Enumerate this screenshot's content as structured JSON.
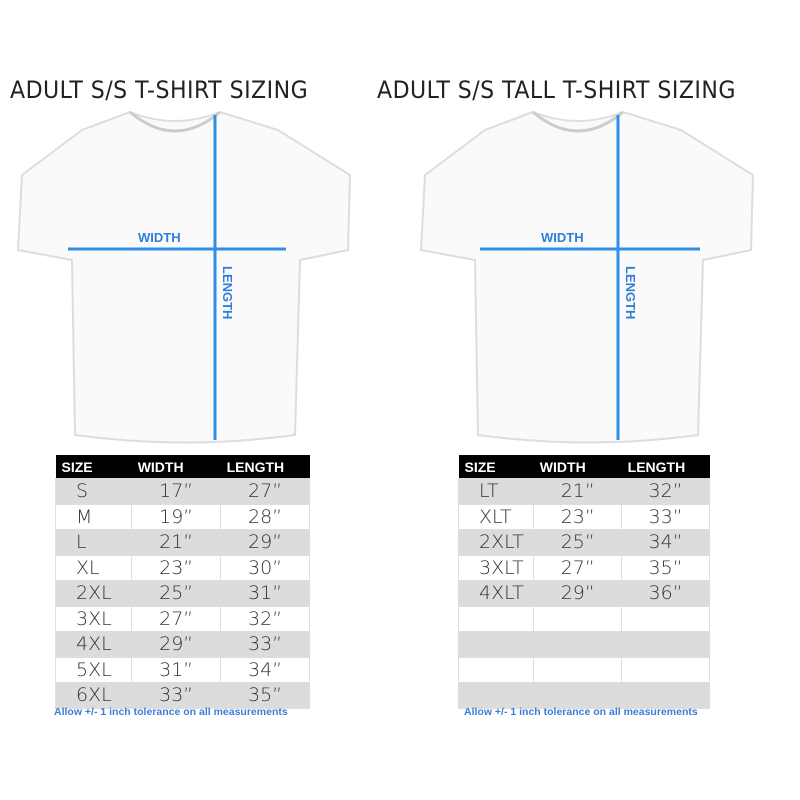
{
  "charts": [
    {
      "title": "ADULT S/S T-SHIRT SIZING",
      "width_label": "WIDTH",
      "length_label": "LENGTH",
      "headers": [
        "SIZE",
        "WIDTH",
        "LENGTH"
      ],
      "rows": [
        [
          "S",
          "17”",
          "27”"
        ],
        [
          "M",
          "19”",
          "28”"
        ],
        [
          "L",
          "21”",
          "29”"
        ],
        [
          "XL",
          "23”",
          "30”"
        ],
        [
          "2XL",
          "25”",
          "31”"
        ],
        [
          "3XL",
          "27”",
          "32”"
        ],
        [
          "4XL",
          "29”",
          "33”"
        ],
        [
          "5XL",
          "31”",
          "34”"
        ],
        [
          "6XL",
          "33”",
          "35”"
        ]
      ],
      "note": "Allow +/- 1 inch tolerance on all measurements"
    },
    {
      "title": "ADULT S/S TALL T-SHIRT SIZING",
      "width_label": "WIDTH",
      "length_label": "LENGTH",
      "headers": [
        "SIZE",
        "WIDTH",
        "LENGTH"
      ],
      "rows": [
        [
          "LT",
          "21”",
          "32”"
        ],
        [
          "XLT",
          "23”",
          "33”"
        ],
        [
          "2XLT",
          "25”",
          "34”"
        ],
        [
          "3XLT",
          "27”",
          "35”"
        ],
        [
          "4XLT",
          "29”",
          "36”"
        ],
        [
          "",
          "",
          ""
        ],
        [
          "",
          "",
          ""
        ],
        [
          "",
          "",
          ""
        ],
        [
          "",
          "",
          ""
        ]
      ],
      "note": "Allow +/- 1 inch tolerance on all measurements"
    }
  ],
  "colors": {
    "measure_line": "#2f8fe8",
    "header_bg": "#000000",
    "note": "#3b7dd8"
  }
}
